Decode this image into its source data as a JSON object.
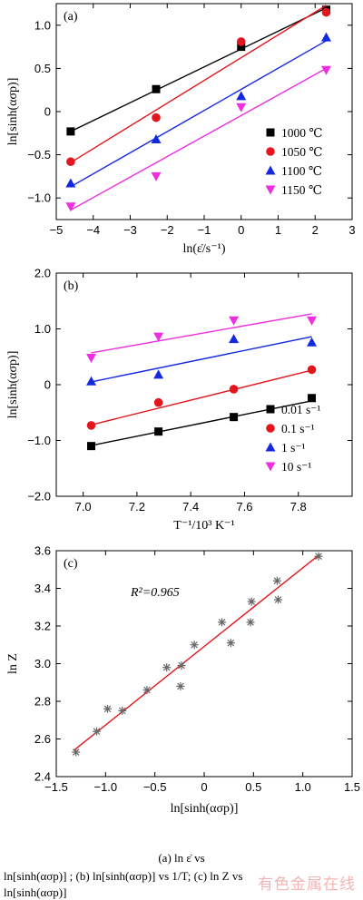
{
  "charts": [
    {
      "type": "line",
      "panel_label": "(a)",
      "xlabel": "ln(ε̇/s⁻¹)",
      "ylabel": "ln[sinh(ασp)]",
      "xlim": [
        -5,
        3
      ],
      "ylim": [
        -1.25,
        1.25
      ],
      "xticks": [
        -5,
        -4,
        -3,
        -2,
        -1,
        0,
        1,
        2,
        3
      ],
      "yticks": [
        -1.0,
        -0.5,
        0,
        0.5,
        1.0
      ],
      "ytick_labels": [
        "-1.0",
        "-0.5",
        "0",
        "0.5",
        "1.0"
      ],
      "legend_position": "lower-right",
      "series": [
        {
          "name": "1000 ℃",
          "color": "#000000",
          "marker": "square",
          "x": [
            -4.61,
            -2.3,
            0.0,
            2.3
          ],
          "y": [
            -0.23,
            0.26,
            0.75,
            1.18
          ],
          "fit": [
            [
              -4.61,
              -0.23
            ],
            [
              2.3,
              1.2
            ]
          ]
        },
        {
          "name": "1050 ℃",
          "color": "#e3161d",
          "marker": "circle",
          "x": [
            -4.61,
            -2.3,
            0.0,
            2.3
          ],
          "y": [
            -0.58,
            -0.07,
            0.81,
            1.15
          ],
          "fit": [
            [
              -4.61,
              -0.59
            ],
            [
              2.3,
              1.23
            ]
          ]
        },
        {
          "name": "1100 ℃",
          "color": "#1428e0",
          "marker": "triangle-up",
          "x": [
            -4.61,
            -2.3,
            0.0,
            2.3
          ],
          "y": [
            -0.83,
            -0.32,
            0.18,
            0.86
          ],
          "fit": [
            [
              -4.61,
              -0.87
            ],
            [
              2.3,
              0.82
            ]
          ]
        },
        {
          "name": "1150 ℃",
          "color": "#ee2ee0",
          "marker": "triangle-down",
          "x": [
            -4.61,
            -2.3,
            0.0,
            2.3
          ],
          "y": [
            -1.1,
            -0.75,
            0.05,
            0.48
          ],
          "fit": [
            [
              -4.61,
              -1.14
            ],
            [
              2.3,
              0.5
            ]
          ]
        }
      ]
    },
    {
      "type": "line",
      "panel_label": "(b)",
      "xlabel": "T⁻¹/10³ K⁻¹",
      "ylabel": "ln[sinh(ασp)]",
      "xlim": [
        6.9,
        8.0
      ],
      "ylim": [
        -2.0,
        2.0
      ],
      "xticks": [
        7.0,
        7.2,
        7.4,
        7.6,
        7.8
      ],
      "xtick_labels": [
        "7.0",
        "7.2",
        "7.4",
        "7.6",
        "7.8"
      ],
      "yticks": [
        -2.0,
        -1.0,
        0,
        1.0,
        2.0
      ],
      "ytick_labels": [
        "-2.0",
        "-1.0",
        "0",
        "1.0",
        "2.0"
      ],
      "legend_position": "lower-right",
      "series": [
        {
          "name": "0.01 s⁻¹",
          "color": "#000000",
          "marker": "square",
          "x": [
            7.03,
            7.28,
            7.56,
            7.85
          ],
          "y": [
            -1.1,
            -0.84,
            -0.58,
            -0.24
          ],
          "fit": [
            [
              7.03,
              -1.09
            ],
            [
              7.85,
              -0.29
            ]
          ]
        },
        {
          "name": "0.1 s⁻¹",
          "color": "#e3161d",
          "marker": "circle",
          "x": [
            7.03,
            7.28,
            7.56,
            7.85
          ],
          "y": [
            -0.73,
            -0.32,
            -0.08,
            0.27
          ],
          "fit": [
            [
              7.03,
              -0.72
            ],
            [
              7.85,
              0.26
            ]
          ]
        },
        {
          "name": "1 s⁻¹",
          "color": "#1428e0",
          "marker": "triangle-up",
          "x": [
            7.03,
            7.28,
            7.56,
            7.85
          ],
          "y": [
            0.06,
            0.18,
            0.82,
            0.76
          ],
          "fit": [
            [
              7.03,
              0.05
            ],
            [
              7.85,
              0.86
            ]
          ]
        },
        {
          "name": "10 s⁻¹",
          "color": "#ee2ee0",
          "marker": "triangle-down",
          "x": [
            7.03,
            7.28,
            7.56,
            7.85
          ],
          "y": [
            0.48,
            0.86,
            1.15,
            1.15
          ],
          "fit": [
            [
              7.03,
              0.57
            ],
            [
              7.85,
              1.27
            ]
          ]
        }
      ]
    },
    {
      "type": "scatter",
      "panel_label": "(c)",
      "xlabel": "ln[sinh(ασp)]",
      "ylabel": "ln Z",
      "annotation": "R²=0.965",
      "xlim": [
        -1.5,
        1.5
      ],
      "ylim": [
        2.4,
        3.6
      ],
      "xticks": [
        -1.5,
        -1.0,
        -0.5,
        0.0,
        0.5,
        1.0,
        1.5
      ],
      "xtick_labels": [
        "-1.5",
        "-1.0",
        "-0.5",
        "0",
        "0.5",
        "1.0",
        "1.5"
      ],
      "yticks": [
        2.4,
        2.6,
        2.8,
        3.0,
        3.2,
        3.4,
        3.6
      ],
      "ytick_labels": [
        "2.4",
        "2.6",
        "2.8",
        "3.0",
        "3.2",
        "3.4",
        "3.6"
      ],
      "series": [
        {
          "color": "#666666",
          "marker": "asterisk",
          "line_color": "#e3161d",
          "x": [
            -1.3,
            -1.09,
            -0.98,
            -0.83,
            -0.58,
            -0.38,
            -0.24,
            -0.23,
            -0.1,
            0.18,
            0.27,
            0.47,
            0.48,
            0.74,
            0.75,
            1.16
          ],
          "y": [
            2.53,
            2.64,
            2.76,
            2.75,
            2.86,
            2.98,
            2.88,
            2.99,
            3.1,
            3.22,
            3.11,
            3.22,
            3.33,
            3.44,
            3.34,
            3.57
          ],
          "fit": [
            [
              -1.32,
              2.54
            ],
            [
              1.17,
              3.58
            ]
          ]
        }
      ]
    }
  ],
  "caption": {
    "line1": "(a)  ln ε̇  vs",
    "line2": "ln[sinh(ασp)] ;  (b)  ln[sinh(ασp)]  vs  1/T;  (c)  ln Z  vs",
    "line3": "ln[sinh(ασp)]"
  },
  "watermark": "有色金属在线"
}
